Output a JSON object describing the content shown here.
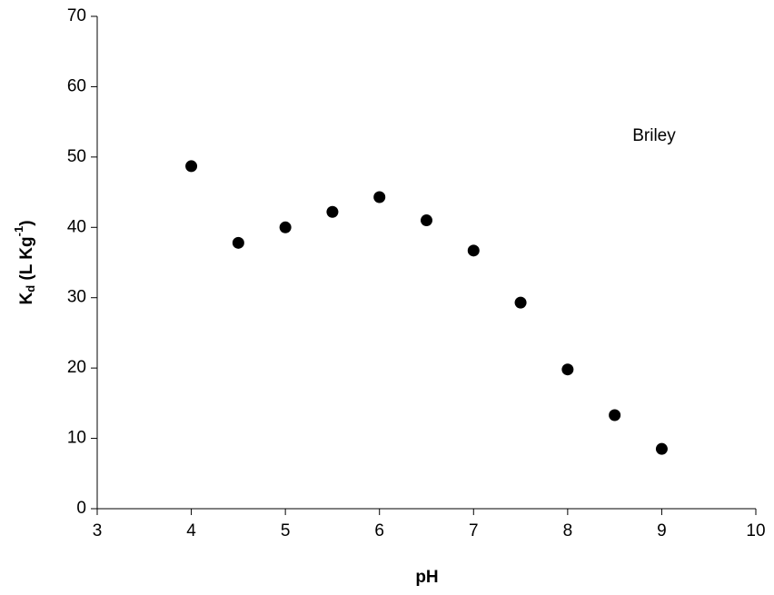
{
  "chart_data": {
    "type": "scatter",
    "x_label": "pH",
    "y_label": [
      "K",
      "d",
      " (L Kg",
      "-1",
      ")"
    ],
    "annotation": "Briley",
    "x": [
      4,
      4.5,
      5,
      5.5,
      6,
      6.5,
      7,
      7.5,
      8,
      8.5,
      9
    ],
    "series": [
      {
        "color": "#000000",
        "values": [
          48.7,
          37.8,
          40.0,
          42.2,
          44.3,
          41.0,
          36.7,
          29.3,
          19.8,
          13.3,
          8.5
        ]
      }
    ],
    "xlim": [
      3,
      10
    ],
    "xticks": [
      3,
      4,
      5,
      6,
      7,
      8,
      9,
      10
    ],
    "ylim": [
      0,
      70
    ],
    "yticks": [
      0,
      10,
      20,
      30,
      40,
      50,
      60,
      70
    ],
    "grid": false
  }
}
